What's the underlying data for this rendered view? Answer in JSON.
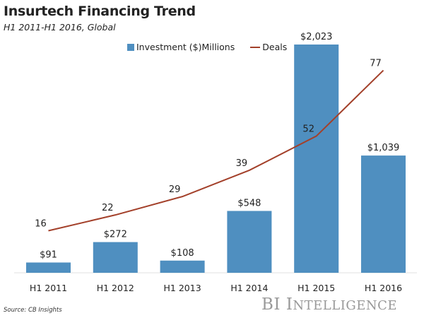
{
  "chart_data": {
    "type": "bar",
    "title": "Insurtech Financing Trend",
    "subtitle": "H1 2011-H1 2016, Global",
    "categories": [
      "H1 2011",
      "H1 2012",
      "H1 2013",
      "H1 2014",
      "H1 2015",
      "H1 2016"
    ],
    "series": [
      {
        "name": "Investment ($)Millions",
        "type": "bar",
        "values": [
          91,
          272,
          108,
          548,
          2023,
          1039
        ],
        "labels": [
          "$91",
          "$272",
          "$108",
          "$548",
          "$2,023",
          "$1,039"
        ],
        "color": "#4f8fc0"
      },
      {
        "name": "Deals",
        "type": "line",
        "values": [
          16,
          22,
          29,
          39,
          52,
          77
        ],
        "labels": [
          "16",
          "22",
          "29",
          "39",
          "52",
          "77"
        ],
        "color": "#a3402a"
      }
    ],
    "legend": "top-center",
    "grid": false,
    "source": "Source: CB Insights"
  },
  "brand": {
    "first": "BI",
    "second_initial": "I",
    "second_rest": "NTELLIGENCE"
  }
}
